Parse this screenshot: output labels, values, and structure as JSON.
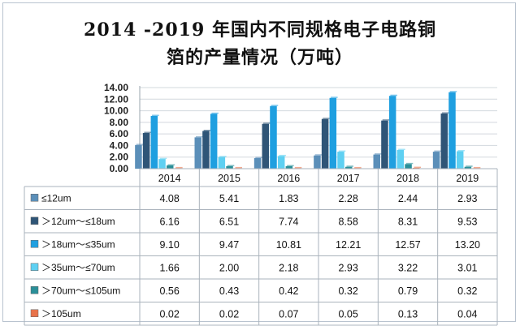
{
  "chart_data": {
    "type": "bar",
    "title_line1": "2014 -2019 年国内不同规格电子电路铜",
    "title_line2": "箔的产量情况（万吨）",
    "categories": [
      "2014",
      "2015",
      "2016",
      "2017",
      "2018",
      "2019"
    ],
    "y_ticks": [
      "14.00",
      "12.00",
      "10.00",
      "8.00",
      "6.00",
      "4.00",
      "2.00",
      "0.00"
    ],
    "ylim": [
      0,
      14
    ],
    "grid": true,
    "legend": "data-table-left",
    "series": [
      {
        "name": "≤12um",
        "color": "#5b8fb9",
        "values": [
          4.08,
          5.41,
          1.83,
          2.28,
          2.44,
          2.93
        ],
        "labels": [
          "4.08",
          "5.41",
          "1.83",
          "2.28",
          "2.44",
          "2.93"
        ]
      },
      {
        "name": "＞12um～≤18um",
        "color": "#2f5577",
        "values": [
          6.16,
          6.51,
          7.74,
          8.58,
          8.31,
          9.53
        ],
        "labels": [
          "6.16",
          "6.51",
          "7.74",
          "8.58",
          "8.31",
          "9.53"
        ]
      },
      {
        "name": "＞18um～≤35um",
        "color": "#1f9fe0",
        "values": [
          9.1,
          9.47,
          10.81,
          12.21,
          12.57,
          13.2
        ],
        "labels": [
          "9.10",
          "9.47",
          "10.81",
          "12.21",
          "12.57",
          "13.20"
        ]
      },
      {
        "name": "＞35um～≤70um",
        "color": "#5fd0f2",
        "values": [
          1.66,
          2.0,
          2.18,
          2.93,
          3.22,
          3.01
        ],
        "labels": [
          "1.66",
          "2.00",
          "2.18",
          "2.93",
          "3.22",
          "3.01"
        ]
      },
      {
        "name": "＞70um～≤105um",
        "color": "#2a8f98",
        "values": [
          0.56,
          0.43,
          0.42,
          0.32,
          0.79,
          0.32
        ],
        "labels": [
          "0.56",
          "0.43",
          "0.42",
          "0.32",
          "0.79",
          "0.32"
        ]
      },
      {
        "name": "＞105um",
        "color": "#e8734a",
        "values": [
          0.02,
          0.02,
          0.07,
          0.05,
          0.13,
          0.04
        ],
        "labels": [
          "0.02",
          "0.02",
          "0.07",
          "0.05",
          "0.13",
          "0.04"
        ]
      }
    ]
  }
}
